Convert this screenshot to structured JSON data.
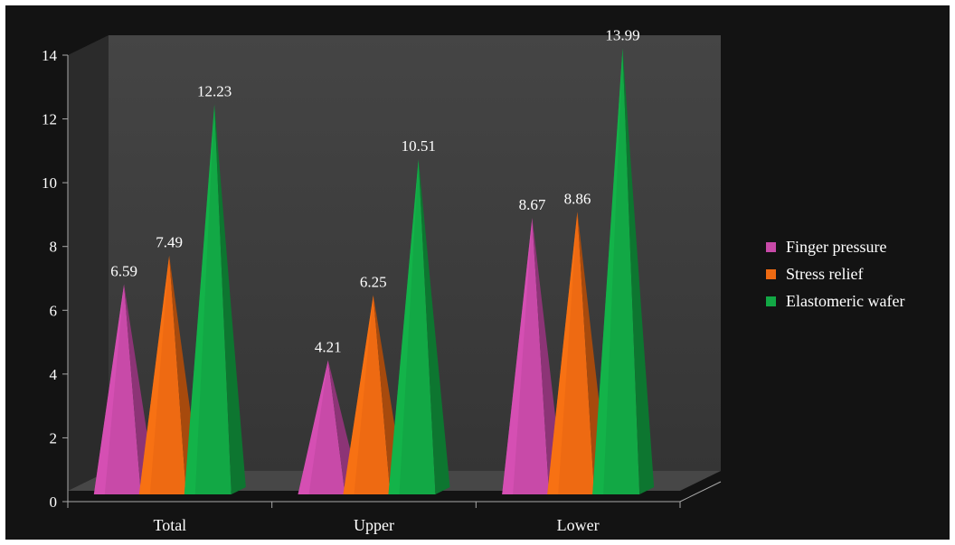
{
  "chart_data": {
    "type": "bar",
    "categories": [
      "Total",
      "Upper",
      "Lower"
    ],
    "series": [
      {
        "name": "Finger pressure",
        "values": [
          6.59,
          4.21,
          8.67
        ],
        "color": "#c84aa8"
      },
      {
        "name": "Stress relief",
        "values": [
          7.49,
          6.25,
          8.86
        ],
        "color": "#ee6a12"
      },
      {
        "name": "Elastomeric wafer",
        "values": [
          12.23,
          10.51,
          13.99
        ],
        "color": "#12a845"
      }
    ],
    "ylim": [
      0,
      14
    ],
    "yticks": [
      0,
      2,
      4,
      6,
      8,
      10,
      12,
      14
    ],
    "bar_shape": "3d-cone",
    "legend_position": "right",
    "background": "#131313",
    "wall_color": "#3c3c3c"
  }
}
